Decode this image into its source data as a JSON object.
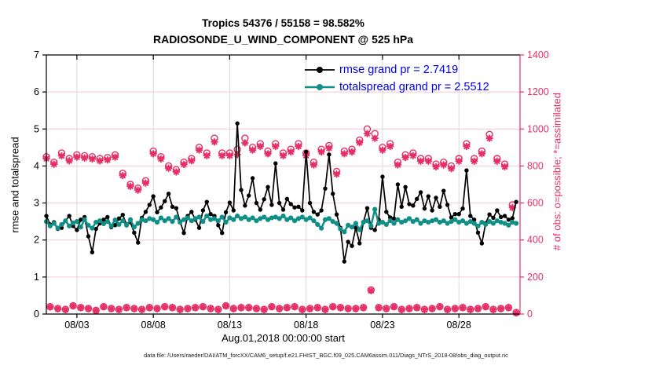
{
  "figure": {
    "title_line1": "Tropics 54376 / 55158 = 98.582%",
    "title_line2": "RADIOSONDE_U_WIND_COMPONENT @ 525 hPa",
    "footer": "data file: /Users/raeder/DAI/ATM_forcXX/CAM6_setup/f.e21.FHIST_BGC.f09_025.CAM6assim.011/Diags_NTrS_2018-08/obs_diag_output.nc"
  },
  "chart_data": {
    "type": "line",
    "title": "Tropics 54376 / 55158 = 98.582%",
    "subtitle": "RADIOSONDE_U_WIND_COMPONENT @ 525 hPa",
    "xlabel": "Aug.01,2018 00:00:00 start",
    "ylabel_left": "rmse and totalspread",
    "ylabel_right": "# of obs: o=possible; *=assimilated",
    "ylim_left": [
      0,
      7
    ],
    "ylim_right": [
      0,
      1400
    ],
    "yticks_left": [
      0,
      1,
      2,
      3,
      4,
      5,
      6,
      7
    ],
    "yticks_right": [
      0,
      200,
      400,
      600,
      800,
      1000,
      1200,
      1400
    ],
    "x_domain_days": [
      0,
      31
    ],
    "xtick_days": [
      2,
      7,
      12,
      17,
      22,
      27
    ],
    "xticklabels": [
      "08/03",
      "08/08",
      "08/13",
      "08/18",
      "08/23",
      "08/28"
    ],
    "time_step_hours": 6,
    "grid": true,
    "legend_position": "top-right-inside",
    "legend": [
      {
        "label": "rmse grand pr = 2.7419",
        "series": "rmse"
      },
      {
        "label": "totalspread grand pr = 2.5512",
        "series": "totalspread"
      }
    ],
    "colors": {
      "rmse": "#000000",
      "totalspread": "#0F8F86",
      "obs_counts": "#E62E66",
      "legend_text": "#0000EE",
      "grid_vertical": "#D9D9D9",
      "grid_horizontal": "#F2C9D4",
      "axis_left": "#000000",
      "axis_right": "#E62E66"
    },
    "series": [
      {
        "name": "rmse",
        "axis": "left",
        "marker": "filled-circle",
        "values": [
          2.65,
          2.42,
          2.48,
          2.3,
          2.33,
          2.52,
          2.65,
          2.38,
          2.27,
          2.55,
          2.62,
          2.1,
          1.67,
          2.3,
          2.45,
          2.55,
          2.62,
          2.35,
          2.4,
          2.58,
          2.68,
          2.42,
          2.48,
          2.2,
          1.93,
          2.6,
          2.76,
          2.95,
          3.18,
          2.75,
          2.88,
          3.05,
          3.25,
          2.9,
          2.86,
          2.5,
          2.19,
          2.65,
          2.76,
          2.55,
          2.33,
          2.8,
          3.03,
          2.7,
          2.65,
          2.4,
          2.19,
          2.75,
          3.01,
          2.8,
          5.15,
          3.35,
          2.93,
          3.2,
          3.67,
          3.0,
          2.82,
          3.1,
          3.43,
          2.95,
          4.07,
          3.0,
          2.82,
          3.11,
          2.97,
          2.88,
          2.9,
          2.8,
          4.38,
          3.0,
          2.76,
          2.69,
          2.8,
          3.39,
          4.31,
          3.25,
          2.69,
          2.33,
          1.42,
          1.95,
          1.84,
          2.33,
          1.91,
          2.48,
          2.86,
          2.33,
          2.27,
          2.55,
          3.71,
          2.76,
          2.61,
          2.58,
          3.5,
          2.9,
          3.43,
          2.97,
          2.93,
          3.11,
          3.29,
          2.85,
          3.18,
          2.8,
          3.14,
          2.9,
          3.33,
          2.95,
          2.61,
          2.7,
          2.7,
          2.85,
          3.88,
          2.65,
          2.55,
          2.2,
          1.91,
          2.45,
          2.69,
          2.6,
          2.8,
          2.62,
          2.65,
          2.55,
          2.59,
          3.03
        ]
      },
      {
        "name": "totalspread",
        "axis": "left",
        "marker": "filled-circle",
        "values": [
          2.5,
          2.38,
          2.45,
          2.32,
          2.42,
          2.52,
          2.38,
          2.46,
          2.5,
          2.35,
          2.55,
          2.4,
          2.32,
          2.48,
          2.52,
          2.44,
          2.5,
          2.38,
          2.54,
          2.42,
          2.52,
          2.4,
          2.55,
          2.35,
          2.45,
          2.55,
          2.52,
          2.58,
          2.55,
          2.48,
          2.6,
          2.52,
          2.58,
          2.5,
          2.62,
          2.48,
          2.55,
          2.6,
          2.52,
          2.58,
          2.62,
          2.5,
          2.65,
          2.55,
          2.58,
          2.52,
          2.62,
          2.48,
          2.6,
          2.55,
          2.65,
          2.58,
          2.62,
          2.55,
          2.6,
          2.52,
          2.58,
          2.62,
          2.55,
          2.6,
          2.62,
          2.58,
          2.65,
          2.55,
          2.6,
          2.52,
          2.58,
          2.62,
          2.55,
          2.6,
          2.52,
          2.42,
          2.32,
          2.55,
          2.58,
          2.5,
          2.45,
          2.3,
          2.22,
          2.4,
          2.35,
          2.45,
          2.28,
          2.48,
          2.52,
          2.38,
          2.83,
          2.45,
          2.48,
          2.42,
          2.52,
          2.45,
          2.55,
          2.48,
          2.52,
          2.58,
          2.5,
          2.55,
          2.45,
          2.52,
          2.48,
          2.52,
          2.55,
          2.48,
          2.52,
          2.45,
          2.5,
          2.55,
          2.48,
          2.52,
          2.45,
          2.5,
          2.45,
          2.38,
          2.48,
          2.42,
          2.5,
          2.45,
          2.52,
          2.48,
          2.45,
          2.4,
          2.48,
          2.45
        ]
      },
      {
        "name": "possible",
        "axis": "right",
        "marker": "open-circle",
        "values": [
          850,
          40,
          820,
          30,
          870,
          25,
          840,
          45,
          860,
          35,
          855,
          30,
          850,
          20,
          840,
          40,
          845,
          30,
          860,
          25,
          760,
          35,
          700,
          30,
          680,
          25,
          720,
          35,
          880,
          30,
          850,
          40,
          800,
          35,
          780,
          25,
          820,
          30,
          840,
          35,
          900,
          40,
          870,
          30,
          950,
          25,
          870,
          45,
          870,
          30,
          890,
          35,
          950,
          35,
          900,
          30,
          920,
          25,
          880,
          40,
          920,
          30,
          870,
          35,
          890,
          40,
          920,
          25,
          870,
          30,
          820,
          35,
          890,
          25,
          910,
          40,
          770,
          35,
          880,
          30,
          890,
          30,
          940,
          35,
          1000,
          130,
          975,
          35,
          900,
          30,
          920,
          40,
          820,
          25,
          860,
          30,
          870,
          35,
          840,
          25,
          840,
          30,
          810,
          40,
          820,
          25,
          800,
          30,
          840,
          35,
          920,
          25,
          840,
          30,
          880,
          40,
          970,
          25,
          840,
          30,
          810,
          35,
          590,
          8
        ]
      },
      {
        "name": "assimilated",
        "axis": "right",
        "marker": "asterisk",
        "values": [
          840,
          38,
          810,
          29,
          855,
          24,
          828,
          44,
          848,
          34,
          843,
          29,
          838,
          19,
          828,
          39,
          833,
          29,
          848,
          24,
          748,
          34,
          690,
          29,
          670,
          24,
          708,
          34,
          866,
          29,
          838,
          39,
          788,
          34,
          768,
          24,
          808,
          29,
          828,
          34,
          886,
          39,
          856,
          29,
          930,
          24,
          856,
          44,
          856,
          29,
          862,
          34,
          925,
          34,
          886,
          29,
          906,
          24,
          866,
          39,
          906,
          29,
          856,
          34,
          876,
          39,
          906,
          24,
          856,
          29,
          806,
          34,
          876,
          24,
          896,
          39,
          756,
          34,
          866,
          29,
          876,
          29,
          926,
          34,
          975,
          126,
          950,
          34,
          886,
          29,
          906,
          39,
          806,
          24,
          846,
          29,
          856,
          34,
          826,
          24,
          826,
          29,
          796,
          39,
          806,
          24,
          786,
          29,
          826,
          34,
          906,
          24,
          826,
          29,
          866,
          39,
          950,
          24,
          826,
          29,
          796,
          34,
          575,
          6
        ]
      }
    ]
  }
}
